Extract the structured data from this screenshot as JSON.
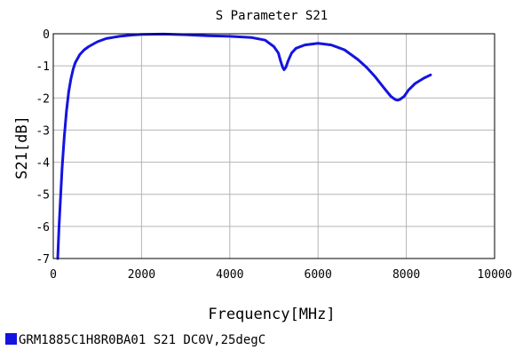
{
  "chart_data": {
    "type": "line",
    "title": "S Parameter S21",
    "xlabel": "Frequency[MHz]",
    "ylabel": "S21[dB]",
    "xlim": [
      0,
      10000
    ],
    "ylim": [
      -7,
      0
    ],
    "x_ticks": [
      0,
      2000,
      4000,
      6000,
      8000,
      10000
    ],
    "x_tick_labels": [
      "0",
      "2000",
      "4000",
      "6000",
      "8000",
      "10000"
    ],
    "y_ticks": [
      0,
      -1,
      -2,
      -3,
      -4,
      -5,
      -6,
      -7
    ],
    "y_tick_labels": [
      "0",
      "-1",
      "-2",
      "-3",
      "-4",
      "-5",
      "-6",
      "-7"
    ],
    "grid": true,
    "legend_position": "bottom-left",
    "series": [
      {
        "name": "GRM1885C1H8R0BA01 S21 DC0V,25degC",
        "color": "#1414e0",
        "x": [
          100,
          130,
          160,
          200,
          250,
          300,
          350,
          400,
          450,
          500,
          600,
          700,
          800,
          1000,
          1200,
          1500,
          1800,
          2000,
          2500,
          3000,
          3500,
          4000,
          4500,
          4800,
          5000,
          5100,
          5150,
          5200,
          5230,
          5270,
          5320,
          5400,
          5500,
          5700,
          6000,
          6300,
          6600,
          6900,
          7100,
          7300,
          7500,
          7650,
          7750,
          7800,
          7850,
          7950,
          8050,
          8200,
          8400,
          8550
        ],
        "y": [
          -7,
          -6.0,
          -5.2,
          -4.2,
          -3.2,
          -2.4,
          -1.8,
          -1.4,
          -1.1,
          -0.9,
          -0.65,
          -0.5,
          -0.4,
          -0.25,
          -0.15,
          -0.08,
          -0.04,
          -0.02,
          -0.01,
          -0.03,
          -0.06,
          -0.08,
          -0.12,
          -0.2,
          -0.4,
          -0.6,
          -0.85,
          -1.05,
          -1.12,
          -1.05,
          -0.85,
          -0.6,
          -0.45,
          -0.35,
          -0.3,
          -0.35,
          -0.5,
          -0.8,
          -1.05,
          -1.35,
          -1.7,
          -1.95,
          -2.05,
          -2.07,
          -2.05,
          -1.95,
          -1.75,
          -1.55,
          -1.38,
          -1.28
        ]
      }
    ]
  }
}
